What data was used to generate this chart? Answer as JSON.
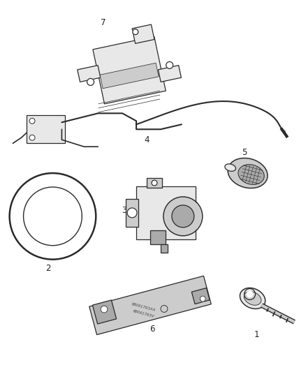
{
  "bg_color": "#ffffff",
  "fig_width": 4.38,
  "fig_height": 5.33,
  "dpi": 100,
  "line_color": "#2a2a2a",
  "light_fill": "#e8e8e8",
  "mid_fill": "#cccccc",
  "dark_fill": "#aaaaaa",
  "label_color": "#222222",
  "label_fontsize": 8.5,
  "parts_text": {
    "6_line1": "68061763AA",
    "6_line2": "68061763V"
  }
}
